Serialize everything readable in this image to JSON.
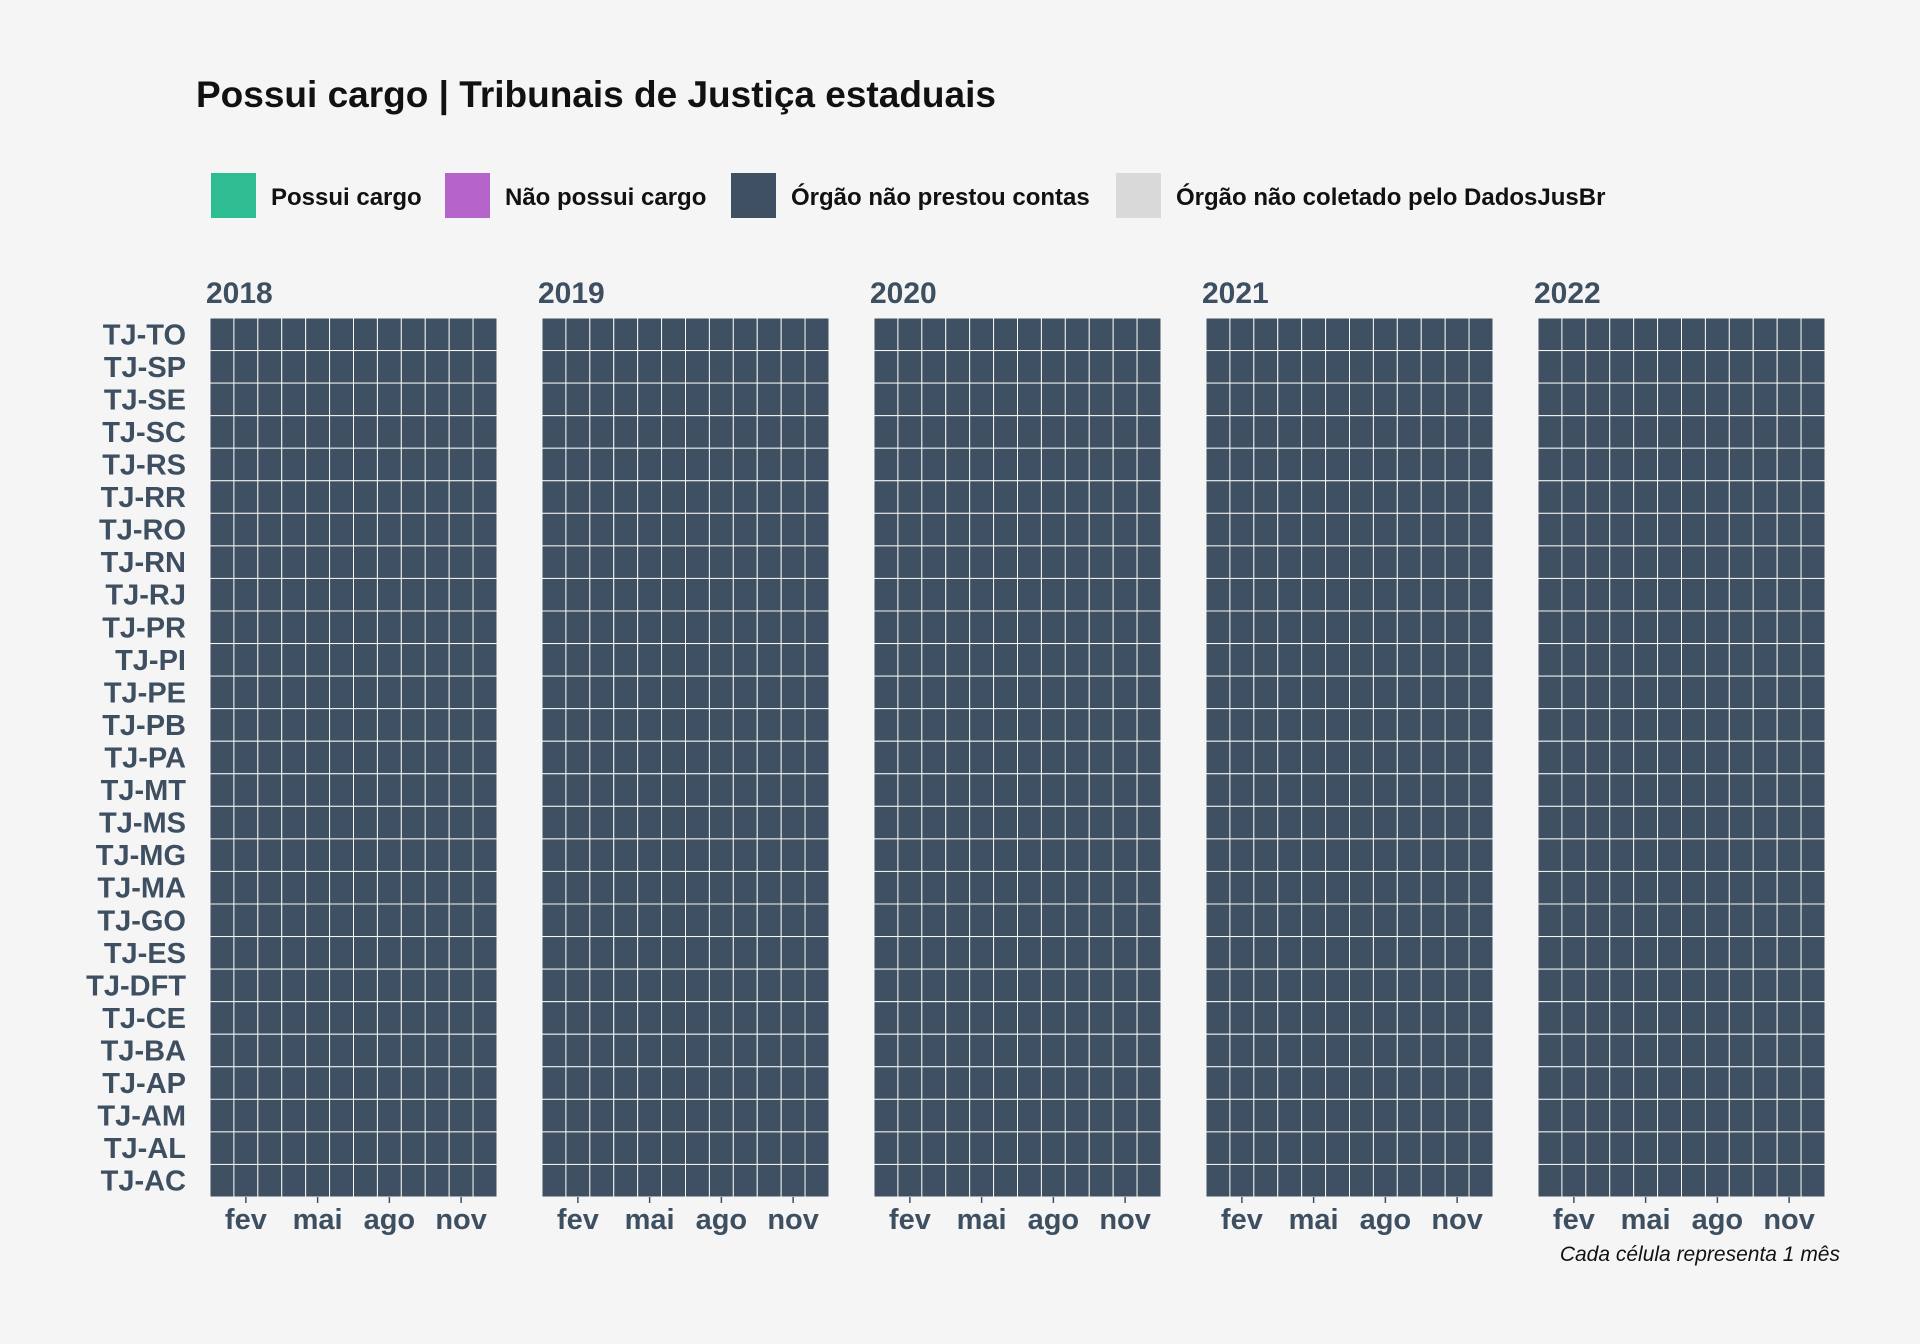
{
  "chart_data": {
    "type": "heatmap",
    "title": "Possui cargo | Tribunais de Justiça estaduais",
    "caption": "Cada célula representa 1 mês",
    "legend": [
      {
        "label": "Possui cargo",
        "color": "#2ebd93"
      },
      {
        "label": "Não possui cargo",
        "color": "#b565c9"
      },
      {
        "label": "Órgão não prestou contas",
        "color": "#3e5062"
      },
      {
        "label": "Órgão não coletado pelo DadosJusBr",
        "color": "#d9d9d9"
      }
    ],
    "legend_placement": "top",
    "years": [
      "2018",
      "2019",
      "2020",
      "2021",
      "2022"
    ],
    "months_per_year": 12,
    "x_ticks": [
      {
        "month": 2,
        "label": "fev"
      },
      {
        "month": 5,
        "label": "mai"
      },
      {
        "month": 8,
        "label": "ago"
      },
      {
        "month": 11,
        "label": "nov"
      }
    ],
    "rows": [
      "TJ-TO",
      "TJ-SP",
      "TJ-SE",
      "TJ-SC",
      "TJ-RS",
      "TJ-RR",
      "TJ-RO",
      "TJ-RN",
      "TJ-RJ",
      "TJ-PR",
      "TJ-PI",
      "TJ-PE",
      "TJ-PB",
      "TJ-PA",
      "TJ-MT",
      "TJ-MS",
      "TJ-MG",
      "TJ-MA",
      "TJ-GO",
      "TJ-ES",
      "TJ-DFT",
      "TJ-CE",
      "TJ-BA",
      "TJ-AP",
      "TJ-AM",
      "TJ-AL",
      "TJ-AC"
    ],
    "fill_status": "Órgão não prestou contas",
    "grid": false
  }
}
